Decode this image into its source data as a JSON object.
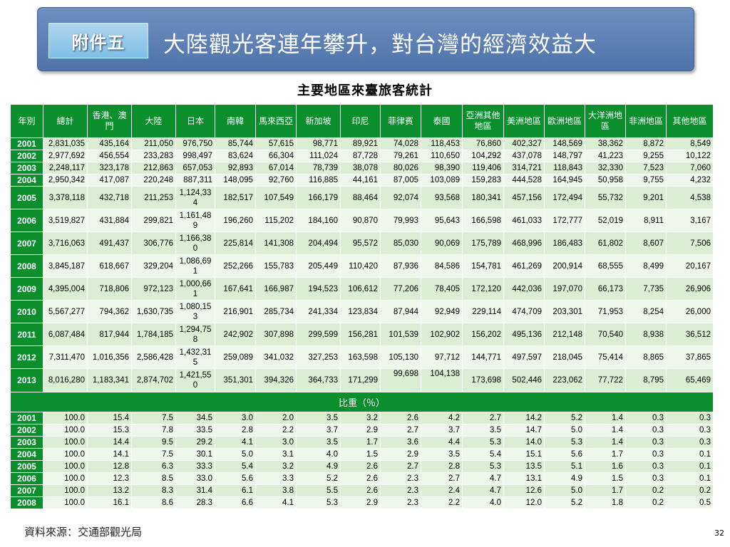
{
  "slide": {
    "badge": "附件五",
    "headline": "大陸觀光客連年攀升，對台灣的經濟效益大",
    "subtitle": "主要地區來臺旅客統計",
    "source": "資料來源：交通部觀光局",
    "page_number": "32"
  },
  "table": {
    "headers": [
      "年別",
      "總計",
      "香港、澳門",
      "大陸",
      "日本",
      "南韓",
      "馬來西亞",
      "新加坡",
      "印尼",
      "菲律賓",
      "泰國",
      "亞洲其他地區",
      "美洲地區",
      "歐洲地區",
      "大洋洲地區",
      "非洲地區",
      "其他地區"
    ],
    "rows": [
      [
        "2001",
        "2,831,035",
        "435,164",
        "211,050",
        "976,750",
        "85,744",
        "57,615",
        "98,771",
        "89,921",
        "74,028",
        "118,453",
        "76,860",
        "402,327",
        "148,569",
        "38,362",
        "8,872",
        "8,549"
      ],
      [
        "2002",
        "2,977,692",
        "456,554",
        "233,283",
        "998,497",
        "83,624",
        "66,304",
        "111,024",
        "87,728",
        "79,261",
        "110,650",
        "104,292",
        "437,078",
        "148,797",
        "41,223",
        "9,255",
        "10,122"
      ],
      [
        "2003",
        "2,248,117",
        "323,178",
        "212,863",
        "657,053",
        "92,893",
        "67,014",
        "78,739",
        "38,078",
        "80,026",
        "98,390",
        "119,406",
        "314,721",
        "118,843",
        "32,330",
        "7,523",
        "7,060"
      ],
      [
        "2004",
        "2,950,342",
        "417,087",
        "220,248",
        "887,311",
        "148,095",
        "92,760",
        "116,885",
        "44,161",
        "87,005",
        "103,089",
        "159,283",
        "444,528",
        "164,945",
        "50,958",
        "9,755",
        "4,232"
      ],
      [
        "2005",
        "3,378,118",
        "432,718",
        "211,253",
        "1,124,334",
        "182,517",
        "107,549",
        "166,179",
        "88,464",
        "92,074",
        "93,568",
        "180,341",
        "457,156",
        "172,494",
        "55,732",
        "9,201",
        "4,538"
      ],
      [
        "2006",
        "3,519,827",
        "431,884",
        "299,821",
        "1,161,489",
        "196,260",
        "115,202",
        "184,160",
        "90,870",
        "79,993",
        "95,643",
        "166,598",
        "461,033",
        "172,777",
        "52,019",
        "8,911",
        "3,167"
      ],
      [
        "2007",
        "3,716,063",
        "491,437",
        "306,776",
        "1,166,380",
        "225,814",
        "141,308",
        "204,494",
        "95,572",
        "85,030",
        "90,069",
        "175,789",
        "468,996",
        "186,483",
        "61,802",
        "8,607",
        "7,506"
      ],
      [
        "2008",
        "3,845,187",
        "618,667",
        "329,204",
        "1,086,691",
        "252,266",
        "155,783",
        "205,449",
        "110,420",
        "87,936",
        "84,586",
        "154,781",
        "461,269",
        "200,914",
        "68,555",
        "8,499",
        "20,167"
      ],
      [
        "2009",
        "4,395,004",
        "718,806",
        "972,123",
        "1,000,661",
        "167,641",
        "166,987",
        "194,523",
        "106,612",
        "77,206",
        "78,405",
        "172,120",
        "442,036",
        "197,070",
        "66,173",
        "7,735",
        "26,906"
      ],
      [
        "2010",
        "5,567,277",
        "794,362",
        "1,630,735",
        "1,080,153",
        "216,901",
        "285,734",
        "241,334",
        "123,834",
        "87,944",
        "92,949",
        "229,114",
        "474,709",
        "203,301",
        "71,953",
        "8,254",
        "26,000"
      ],
      [
        "2011",
        "6,087,484",
        "817,944",
        "1,784,185",
        "1,294,758",
        "242,902",
        "307,898",
        "299,599",
        "156,281",
        "101,539",
        "102,902",
        "156,202",
        "495,136",
        "212,148",
        "70,540",
        "8,938",
        "36,512"
      ],
      [
        "2012",
        "7,311,470",
        "1,016,356",
        "2,586,428",
        "1,432,315",
        "259,089",
        "341,032",
        "327,253",
        "163,598",
        "105,130",
        "97,712",
        "144,771",
        "497,597",
        "218,045",
        "75,414",
        "8,865",
        "37,865"
      ],
      [
        "2013",
        "8,016,280",
        "1,183,341",
        "2,874,702",
        "1,421,550",
        "351,301",
        "394,326",
        "364,733",
        "171,299",
        "99,698",
        "104,138",
        "173,698",
        "502,446",
        "223,062",
        "77,722",
        "8,795",
        "65,469"
      ]
    ],
    "section_label": "比重（％）",
    "share_rows": [
      [
        "2001",
        "100.0",
        "15.4",
        "7.5",
        "34.5",
        "3.0",
        "2.0",
        "3.5",
        "3.2",
        "2.6",
        "4.2",
        "2.7",
        "14.2",
        "5.2",
        "1.4",
        "0.3",
        "0.3"
      ],
      [
        "2002",
        "100.0",
        "15.3",
        "7.8",
        "33.5",
        "2.8",
        "2.2",
        "3.7",
        "2.9",
        "2.7",
        "3.7",
        "3.5",
        "14.7",
        "5.0",
        "1.4",
        "0.3",
        "0.3"
      ],
      [
        "2003",
        "100.0",
        "14.4",
        "9.5",
        "29.2",
        "4.1",
        "3.0",
        "3.5",
        "1.7",
        "3.6",
        "4.4",
        "5.3",
        "14.0",
        "5.3",
        "1.4",
        "0.3",
        "0.3"
      ],
      [
        "2004",
        "100.0",
        "14.1",
        "7.5",
        "30.1",
        "5.0",
        "3.1",
        "4.0",
        "1.5",
        "2.9",
        "3.5",
        "5.4",
        "15.1",
        "5.6",
        "1.7",
        "0.3",
        "0.1"
      ],
      [
        "2005",
        "100.0",
        "12.8",
        "6.3",
        "33.3",
        "5.4",
        "3.2",
        "4.9",
        "2.6",
        "2.7",
        "2.8",
        "5.3",
        "13.5",
        "5.1",
        "1.6",
        "0.3",
        "0.1"
      ],
      [
        "2006",
        "100.0",
        "12.3",
        "8.5",
        "33.0",
        "5.6",
        "3.3",
        "5.2",
        "2.6",
        "2.3",
        "2.7",
        "4.7",
        "13.1",
        "4.9",
        "1.5",
        "0.3",
        "0.1"
      ],
      [
        "2007",
        "100.0",
        "13.2",
        "8.3",
        "31.4",
        "6.1",
        "3.8",
        "5.5",
        "2.6",
        "2.3",
        "2.4",
        "4.7",
        "12.6",
        "5.0",
        "1.7",
        "0.2",
        "0.2"
      ],
      [
        "2008",
        "100.0",
        "16.1",
        "8.6",
        "28.3",
        "6.6",
        "4.1",
        "5.3",
        "2.9",
        "2.3",
        "2.2",
        "4.0",
        "12.0",
        "5.2",
        "1.8",
        "0.2",
        "0.5"
      ]
    ]
  }
}
